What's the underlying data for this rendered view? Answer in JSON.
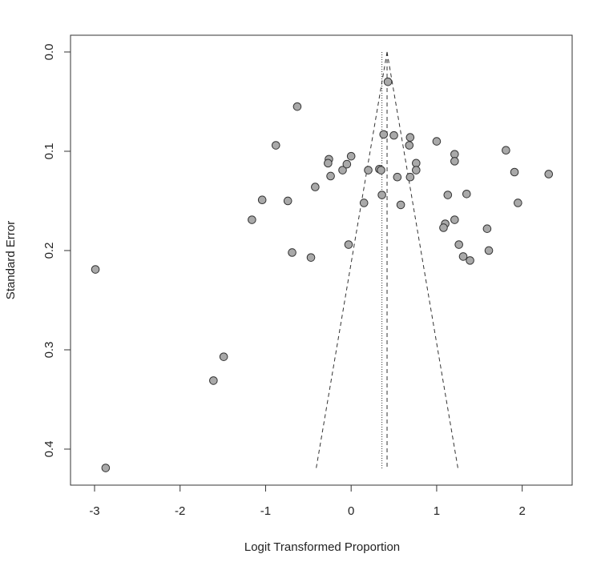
{
  "chart_data": {
    "type": "scatter",
    "x_label": "Logit Transformed Proportion",
    "y_label": "Standard Error",
    "xlim": [
      -3.281,
      2.584
    ],
    "ylim": [
      0.4363,
      -0.0169
    ],
    "xticks": [
      -3,
      -2,
      -1,
      0,
      1,
      2
    ],
    "yticks": [
      {
        "value": 0,
        "label": "0.0"
      },
      0.1,
      0.2,
      0.3,
      0.4
    ],
    "point_color": "#a9a9a9",
    "x": [
      -2.99,
      -2.87,
      -1.61,
      -1.49,
      -1.16,
      -1.04,
      -0.88,
      -0.74,
      -0.69,
      -0.63,
      -0.47,
      -0.42,
      -0.26,
      -0.27,
      -0.24,
      -0.1,
      -0.05,
      0.0,
      -0.03,
      0.15,
      0.2,
      0.33,
      0.35,
      0.36,
      0.38,
      0.43,
      0.5,
      0.54,
      0.58,
      0.68,
      0.69,
      0.69,
      0.76,
      0.76,
      1.0,
      1.13,
      1.1,
      1.08,
      1.21,
      1.21,
      1.21,
      1.26,
      1.31,
      1.39,
      1.35,
      1.59,
      1.61,
      1.81,
      1.91,
      1.95,
      2.31
    ],
    "values": [
      0.219,
      0.419,
      0.331,
      0.307,
      0.169,
      0.149,
      0.094,
      0.15,
      0.202,
      0.055,
      0.207,
      0.136,
      0.108,
      0.112,
      0.125,
      0.119,
      0.113,
      0.105,
      0.194,
      0.152,
      0.119,
      0.118,
      0.119,
      0.144,
      0.083,
      0.03,
      0.084,
      0.126,
      0.154,
      0.094,
      0.086,
      0.126,
      0.112,
      0.119,
      0.09,
      0.144,
      0.173,
      0.177,
      0.169,
      0.103,
      0.11,
      0.194,
      0.206,
      0.21,
      0.143,
      0.178,
      0.2,
      0.099,
      0.121,
      0.152,
      0.123
    ],
    "funnel_lines": [
      {
        "style": "dashed",
        "x": [
          0.42,
          -0.41
        ],
        "y": [
          0,
          0.42
        ]
      },
      {
        "style": "dashed",
        "x": [
          0.42,
          1.25
        ],
        "y": [
          0,
          0.42
        ]
      },
      {
        "style": "dashed",
        "x": [
          0.42,
          0.42
        ],
        "y": [
          0,
          0.42
        ]
      },
      {
        "style": "dotted",
        "x": [
          0.36,
          0.36
        ],
        "y": [
          0,
          0.42
        ]
      }
    ]
  }
}
